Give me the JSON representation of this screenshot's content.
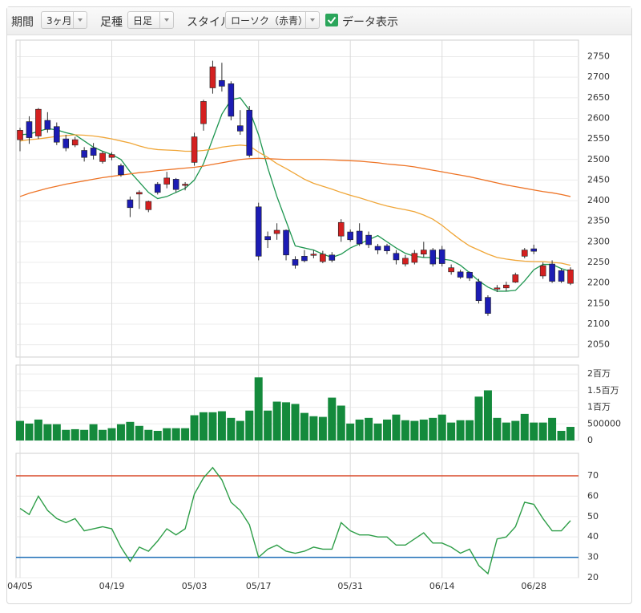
{
  "toolbar": {
    "period_label": "期間",
    "period": "3ヶ月",
    "kind_label": "足種",
    "kind": "日足",
    "style_label": "スタイル",
    "style": "ローソク（赤青）",
    "show_data": "データ表示",
    "show_data_checked": true
  },
  "chart_data": [
    {
      "type": "candlestick",
      "up_color": "#d42020",
      "down_color": "#1c1cb4",
      "grid": true,
      "ylim": [
        2020,
        2790
      ],
      "yticks": [
        2050,
        2100,
        2150,
        2200,
        2250,
        2300,
        2350,
        2400,
        2450,
        2500,
        2550,
        2600,
        2650,
        2700,
        2750
      ],
      "open": [
        2548,
        2592,
        2557,
        2595,
        2580,
        2550,
        2535,
        2522,
        2528,
        2495,
        2505,
        2485,
        2402,
        2416,
        2378,
        2440,
        2440,
        2452,
        2437,
        2493,
        2587,
        2674,
        2692,
        2684,
        2582,
        2620,
        2385,
        2313,
        2320,
        2328,
        2257,
        2265,
        2268,
        2252,
        2268,
        2314,
        2324,
        2326,
        2316,
        2289,
        2290,
        2272,
        2246,
        2250,
        2270,
        2280,
        2281,
        2227,
        2227,
        2226,
        2203,
        2165,
        2185,
        2188,
        2202,
        2265,
        2283,
        2217,
        2246,
        2230,
        2199
      ],
      "high": [
        2577,
        2605,
        2625,
        2615,
        2590,
        2560,
        2555,
        2530,
        2540,
        2520,
        2518,
        2490,
        2410,
        2425,
        2400,
        2445,
        2470,
        2455,
        2445,
        2565,
        2645,
        2740,
        2735,
        2690,
        2620,
        2630,
        2395,
        2325,
        2345,
        2330,
        2265,
        2280,
        2280,
        2278,
        2275,
        2355,
        2330,
        2345,
        2325,
        2295,
        2295,
        2280,
        2268,
        2280,
        2300,
        2285,
        2290,
        2245,
        2232,
        2228,
        2210,
        2170,
        2195,
        2203,
        2225,
        2285,
        2293,
        2250,
        2255,
        2235,
        2238
      ],
      "low": [
        2520,
        2538,
        2550,
        2565,
        2535,
        2520,
        2530,
        2495,
        2500,
        2490,
        2498,
        2458,
        2360,
        2380,
        2372,
        2415,
        2430,
        2420,
        2425,
        2485,
        2570,
        2660,
        2665,
        2595,
        2560,
        2505,
        2255,
        2285,
        2305,
        2255,
        2235,
        2250,
        2260,
        2248,
        2250,
        2300,
        2300,
        2290,
        2285,
        2270,
        2270,
        2245,
        2240,
        2245,
        2262,
        2240,
        2240,
        2220,
        2210,
        2205,
        2150,
        2120,
        2178,
        2180,
        2200,
        2260,
        2270,
        2210,
        2200,
        2200,
        2195
      ],
      "close": [
        2571,
        2553,
        2622,
        2573,
        2542,
        2528,
        2548,
        2505,
        2510,
        2515,
        2512,
        2463,
        2383,
        2420,
        2398,
        2420,
        2455,
        2427,
        2440,
        2555,
        2641,
        2725,
        2678,
        2605,
        2569,
        2510,
        2265,
        2305,
        2328,
        2268,
        2243,
        2254,
        2270,
        2270,
        2255,
        2347,
        2305,
        2295,
        2293,
        2280,
        2278,
        2256,
        2260,
        2272,
        2280,
        2246,
        2247,
        2237,
        2214,
        2212,
        2157,
        2126,
        2188,
        2195,
        2220,
        2280,
        2277,
        2242,
        2204,
        2204,
        2232
      ],
      "overlays": [
        {
          "color": "#1e9650",
          "values": [
            2560,
            2562,
            2568,
            2575,
            2572,
            2565,
            2560,
            2545,
            2530,
            2520,
            2512,
            2500,
            2470,
            2445,
            2420,
            2405,
            2410,
            2420,
            2430,
            2450,
            2490,
            2550,
            2610,
            2645,
            2650,
            2620,
            2560,
            2480,
            2410,
            2350,
            2290,
            2285,
            2280,
            2270,
            2262,
            2270,
            2285,
            2295,
            2305,
            2315,
            2300,
            2285,
            2272,
            2265,
            2262,
            2262,
            2258,
            2255,
            2243,
            2225,
            2205,
            2190,
            2180,
            2180,
            2182,
            2205,
            2232,
            2245,
            2245,
            2235,
            2228
          ]
        },
        {
          "color": "#f0a638",
          "values": [
            2545,
            2548,
            2550,
            2553,
            2556,
            2558,
            2560,
            2559,
            2557,
            2554,
            2550,
            2545,
            2540,
            2533,
            2527,
            2524,
            2523,
            2522,
            2520,
            2520,
            2522,
            2525,
            2530,
            2533,
            2535,
            2533,
            2518,
            2505,
            2490,
            2478,
            2465,
            2452,
            2442,
            2435,
            2428,
            2420,
            2413,
            2407,
            2400,
            2393,
            2387,
            2382,
            2378,
            2373,
            2365,
            2355,
            2340,
            2322,
            2305,
            2290,
            2280,
            2270,
            2262,
            2258,
            2255,
            2253,
            2252,
            2252,
            2250,
            2248,
            2243
          ]
        },
        {
          "color": "#ee7426",
          "values": [
            2410,
            2418,
            2424,
            2430,
            2435,
            2440,
            2444,
            2448,
            2452,
            2456,
            2459,
            2462,
            2465,
            2468,
            2470,
            2473,
            2475,
            2477,
            2479,
            2481,
            2484,
            2488,
            2492,
            2496,
            2500,
            2502,
            2503,
            2502,
            2501,
            2500,
            2500,
            2500,
            2500,
            2500,
            2499,
            2498,
            2497,
            2496,
            2494,
            2492,
            2489,
            2487,
            2485,
            2482,
            2478,
            2474,
            2470,
            2466,
            2462,
            2458,
            2453,
            2448,
            2443,
            2438,
            2434,
            2430,
            2426,
            2422,
            2419,
            2415,
            2410
          ]
        }
      ]
    },
    {
      "type": "bar",
      "color": "#148a3c",
      "grid": true,
      "ylim": [
        0,
        2270000
      ],
      "yticks": [
        0,
        500000,
        {
          "value": 1000000,
          "label": "1百万"
        },
        {
          "value": 1500000,
          "label": "1.5百万"
        },
        {
          "value": 2000000,
          "label": "2百万"
        }
      ],
      "values": [
        590000,
        510000,
        630000,
        490000,
        490000,
        320000,
        340000,
        320000,
        490000,
        320000,
        370000,
        490000,
        560000,
        440000,
        320000,
        290000,
        370000,
        370000,
        370000,
        760000,
        850000,
        850000,
        880000,
        680000,
        590000,
        900000,
        1900000,
        900000,
        1170000,
        1150000,
        1100000,
        830000,
        730000,
        710000,
        1290000,
        1050000,
        510000,
        630000,
        680000,
        510000,
        630000,
        780000,
        610000,
        590000,
        630000,
        680000,
        780000,
        540000,
        610000,
        610000,
        1320000,
        1510000,
        680000,
        540000,
        590000,
        800000,
        540000,
        540000,
        680000,
        290000,
        410000
      ]
    },
    {
      "type": "line",
      "color": "#2e9e48",
      "grid": true,
      "ylim": [
        20,
        81
      ],
      "yticks": [
        20,
        30,
        40,
        50,
        60,
        70
      ],
      "ref_lines": [
        {
          "value": 70,
          "color": "#d84a2a"
        },
        {
          "value": 30,
          "color": "#2070b8"
        }
      ],
      "values": [
        54,
        51,
        60,
        53,
        49,
        47,
        49,
        43,
        44,
        45,
        44,
        35,
        28,
        35,
        33,
        38,
        44,
        41,
        44,
        61,
        69,
        74,
        68,
        57,
        53,
        46,
        30,
        34,
        36,
        33,
        32,
        33,
        35,
        34,
        34,
        47,
        43,
        41,
        41,
        40,
        40,
        36,
        36,
        39,
        42,
        37,
        37,
        35,
        32,
        34,
        26,
        22,
        39,
        40,
        45,
        57,
        56,
        49,
        43,
        43,
        48
      ],
      "categories": [
        "04/05",
        null,
        null,
        null,
        null,
        null,
        null,
        null,
        null,
        null,
        "04/19",
        null,
        null,
        null,
        null,
        null,
        null,
        null,
        null,
        "05/03",
        null,
        null,
        null,
        null,
        null,
        null,
        "05/17",
        null,
        null,
        null,
        null,
        null,
        null,
        null,
        null,
        null,
        "05/31",
        null,
        null,
        null,
        null,
        null,
        null,
        null,
        null,
        null,
        "06/14",
        null,
        null,
        null,
        null,
        null,
        null,
        null,
        null,
        null,
        "06/28",
        null,
        null,
        null,
        null
      ]
    }
  ]
}
